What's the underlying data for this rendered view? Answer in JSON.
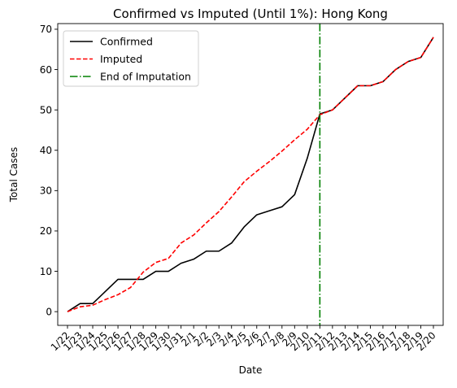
{
  "chart_data": {
    "type": "line",
    "title": "Confirmed vs Imputed (Until 1%): Hong Kong",
    "xlabel": "Date",
    "ylabel": "Total Cases",
    "x": [
      "1/22",
      "1/23",
      "1/24",
      "1/25",
      "1/26",
      "1/27",
      "1/28",
      "1/29",
      "1/30",
      "1/31",
      "2/1",
      "2/2",
      "2/3",
      "2/4",
      "2/5",
      "2/6",
      "2/7",
      "2/8",
      "2/9",
      "2/10",
      "2/11",
      "2/12",
      "2/13",
      "2/14",
      "2/15",
      "2/16",
      "2/17",
      "2/18",
      "2/19",
      "2/20"
    ],
    "ylim": [
      -3.4,
      71.4
    ],
    "yticks": [
      0,
      10,
      20,
      30,
      40,
      50,
      60,
      70
    ],
    "grid": false,
    "legend_position": "top-left",
    "series": [
      {
        "name": "Confirmed",
        "color": "#000000",
        "style": "solid",
        "values": [
          0,
          2,
          2,
          5,
          8,
          8,
          8,
          10,
          10,
          12,
          13,
          15,
          15,
          17,
          21,
          24,
          25,
          26,
          29,
          38,
          49,
          50,
          53,
          56,
          56,
          57,
          60,
          62,
          63,
          68
        ]
      },
      {
        "name": "Imputed",
        "color": "#ff0000",
        "style": "dashed",
        "values": [
          0,
          1.2,
          1.6,
          3.0,
          4.2,
          6.0,
          9.8,
          12.2,
          13.2,
          17.0,
          19.0,
          22.0,
          24.8,
          28.4,
          32.2,
          34.8,
          37.2,
          39.8,
          42.6,
          45.2,
          48.8,
          50,
          53,
          56,
          56,
          57,
          60,
          62,
          63,
          68
        ]
      },
      {
        "name": "End of Imputation",
        "color": "#008000",
        "style": "dashdot",
        "vertical_x": "2/11"
      }
    ]
  }
}
